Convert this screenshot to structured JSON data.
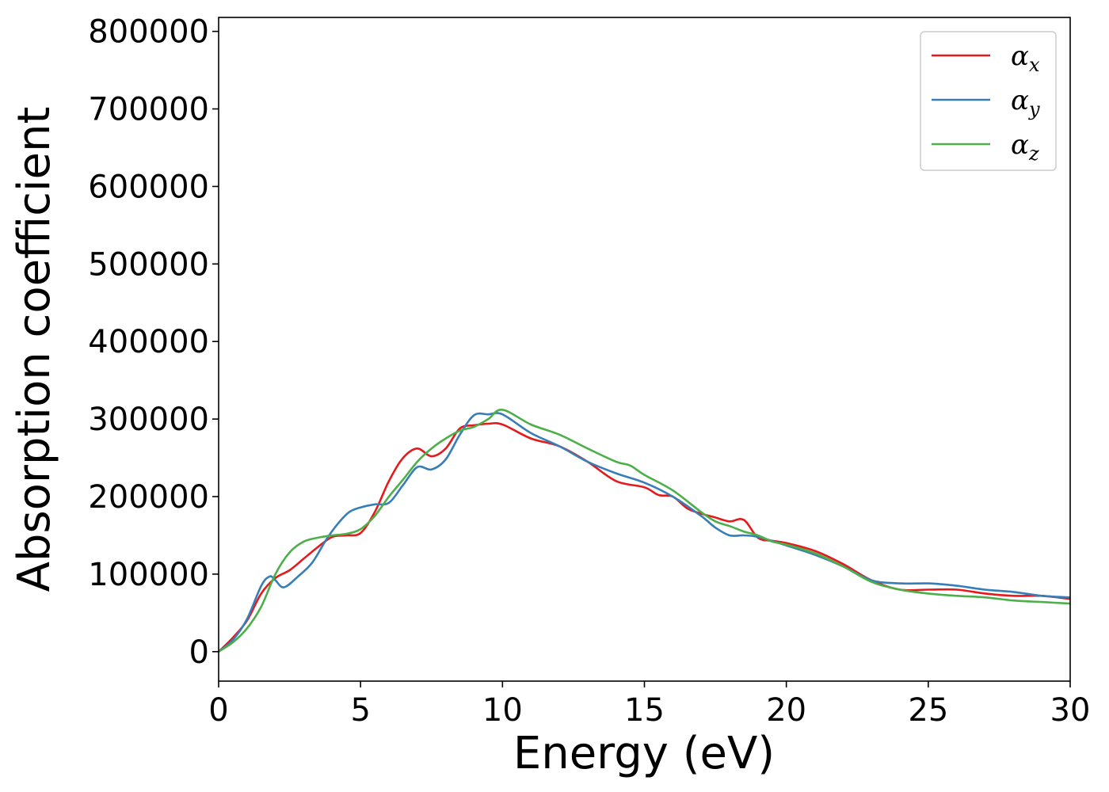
{
  "chart_data": {
    "type": "line",
    "xlabel": "Energy (eV)",
    "ylabel": "Absorption coefficient",
    "xlim": [
      0,
      30
    ],
    "ylim": [
      -38000,
      818000
    ],
    "xticks": [
      "0",
      "5",
      "10",
      "15",
      "20",
      "25",
      "30"
    ],
    "yticks": [
      "0",
      "100000",
      "200000",
      "300000",
      "400000",
      "500000",
      "600000",
      "700000",
      "800000"
    ],
    "grid": false,
    "legend_position": "top-right",
    "series": [
      {
        "name": "αx",
        "symbol": "α",
        "subscript": "x",
        "color": "#e41a1c",
        "x": [
          0,
          0.5,
          1.0,
          1.5,
          2.0,
          2.5,
          3.0,
          3.5,
          4.0,
          4.5,
          5.0,
          5.5,
          6.0,
          6.5,
          7.0,
          7.5,
          8.0,
          8.5,
          9.0,
          9.5,
          10.0,
          11.0,
          12.0,
          13.0,
          14.0,
          15.0,
          15.5,
          16.0,
          16.5,
          17.0,
          17.5,
          18.0,
          18.5,
          19.0,
          19.5,
          20.0,
          21.0,
          22.0,
          23.0,
          24.0,
          25.0,
          26.0,
          27.0,
          28.0,
          29.0,
          30.0
        ],
        "y": [
          0,
          18000,
          40000,
          75000,
          95000,
          105000,
          120000,
          135000,
          148000,
          150000,
          153000,
          180000,
          220000,
          250000,
          262000,
          252000,
          262000,
          288000,
          292000,
          294000,
          293000,
          275000,
          265000,
          245000,
          220000,
          212000,
          202000,
          200000,
          185000,
          178000,
          173000,
          168000,
          170000,
          147000,
          143000,
          140000,
          130000,
          113000,
          92000,
          80000,
          80000,
          80000,
          75000,
          72000,
          72000,
          68000
        ]
      },
      {
        "name": "αy",
        "symbol": "α",
        "subscript": "y",
        "color": "#377eb8",
        "x": [
          0,
          0.5,
          1.0,
          1.5,
          1.8,
          2.0,
          2.3,
          2.8,
          3.3,
          3.8,
          4.2,
          4.6,
          5.0,
          5.5,
          6.0,
          6.5,
          7.0,
          7.5,
          8.0,
          8.5,
          9.0,
          9.5,
          10.0,
          11.0,
          12.0,
          13.0,
          14.0,
          15.0,
          16.0,
          17.0,
          17.5,
          18.0,
          18.5,
          19.0,
          20.0,
          21.0,
          22.0,
          23.0,
          24.0,
          25.0,
          26.0,
          27.0,
          28.0,
          29.0,
          30.0
        ],
        "y": [
          0,
          15000,
          42000,
          85000,
          97000,
          92000,
          83000,
          97000,
          115000,
          145000,
          165000,
          180000,
          186000,
          190000,
          192000,
          215000,
          238000,
          235000,
          248000,
          280000,
          305000,
          306000,
          306000,
          282000,
          265000,
          245000,
          230000,
          218000,
          200000,
          175000,
          160000,
          150000,
          150000,
          148000,
          137000,
          125000,
          110000,
          92000,
          88000,
          88000,
          85000,
          80000,
          77000,
          72000,
          70000
        ]
      },
      {
        "name": "αz",
        "symbol": "α",
        "subscript": "z",
        "color": "#4daf4a",
        "x": [
          0,
          0.5,
          1.0,
          1.5,
          2.0,
          2.5,
          3.0,
          3.5,
          4.0,
          4.5,
          5.0,
          5.5,
          6.0,
          6.5,
          7.0,
          7.5,
          8.0,
          8.5,
          9.0,
          9.5,
          10.0,
          11.0,
          12.0,
          13.0,
          14.0,
          14.5,
          15.0,
          16.0,
          17.0,
          17.5,
          18.0,
          18.5,
          19.0,
          19.5,
          20.0,
          21.0,
          22.0,
          23.0,
          24.0,
          25.0,
          26.0,
          27.0,
          28.0,
          29.0,
          30.0
        ],
        "y": [
          0,
          12000,
          30000,
          58000,
          100000,
          128000,
          142000,
          147000,
          150000,
          152000,
          158000,
          175000,
          200000,
          222000,
          245000,
          262000,
          275000,
          285000,
          290000,
          300000,
          312000,
          293000,
          280000,
          262000,
          245000,
          240000,
          228000,
          208000,
          180000,
          168000,
          162000,
          155000,
          150000,
          142000,
          138000,
          127000,
          110000,
          90000,
          80000,
          75000,
          72000,
          70000,
          66000,
          64000,
          62000
        ]
      }
    ]
  }
}
